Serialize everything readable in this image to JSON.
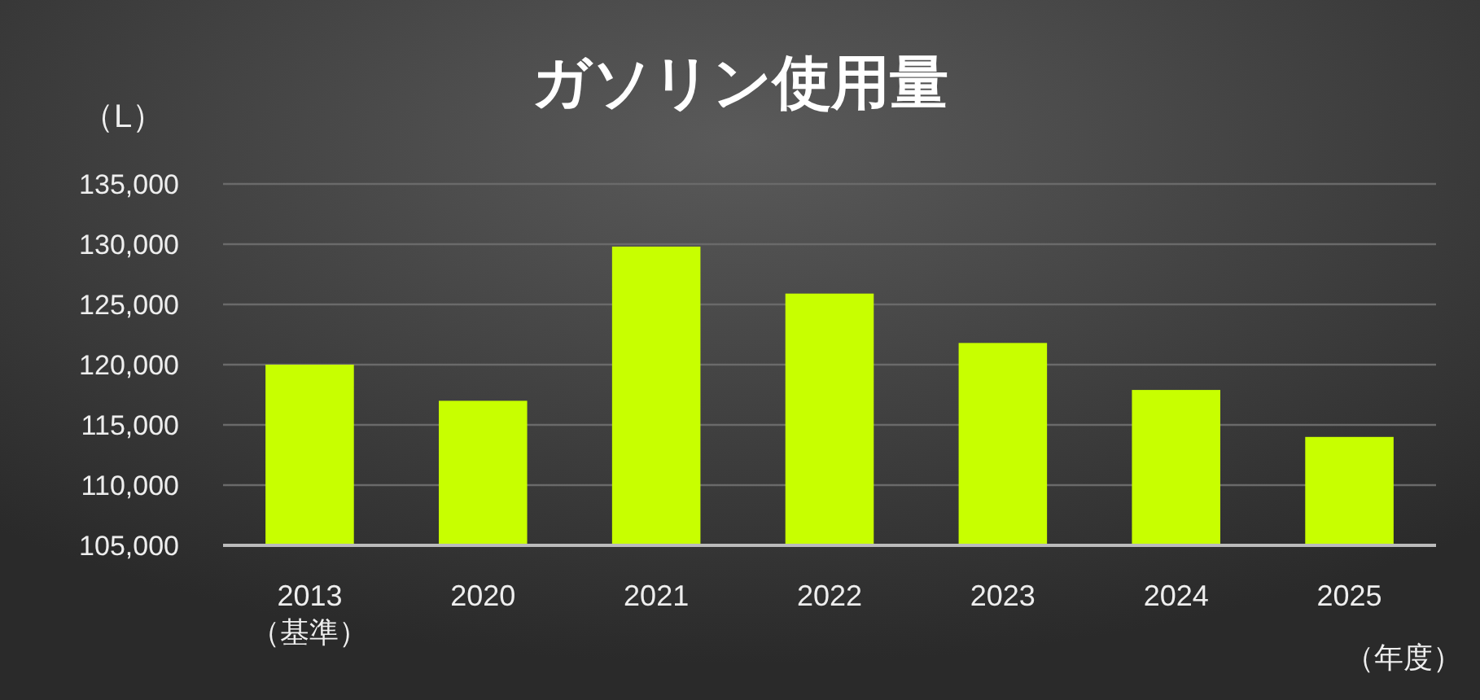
{
  "chart_data": {
    "type": "bar",
    "title": "ガソリン使用量",
    "ylabel": "（L）",
    "xlabel": "（年度）",
    "categories": [
      "2013\n（基準）",
      "2020",
      "2021",
      "2022",
      "2023",
      "2024",
      "2025"
    ],
    "values": [
      120000,
      117000,
      129800,
      125900,
      121800,
      117900,
      114000
    ],
    "color": "#c8ff00",
    "ylim": [
      105000,
      135000
    ],
    "yticks": [
      {
        "value": 105000,
        "label": "105,000"
      },
      {
        "value": 110000,
        "label": "110,000"
      },
      {
        "value": 115000,
        "label": "115,000"
      },
      {
        "value": 120000,
        "label": "120,000"
      },
      {
        "value": 125000,
        "label": "125,000"
      },
      {
        "value": 130000,
        "label": "130,000"
      },
      {
        "value": 135000,
        "label": "135,000"
      }
    ],
    "grid": "y"
  }
}
